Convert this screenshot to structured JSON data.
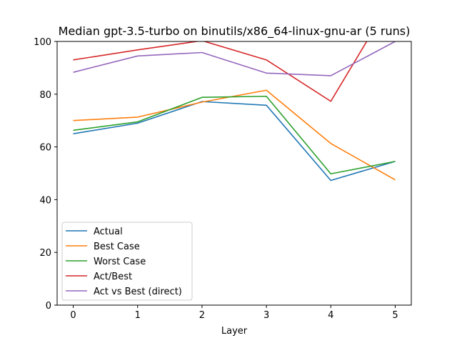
{
  "chart_data": {
    "type": "line",
    "title": "Median gpt-3.5-turbo on binutils/x86_64-linux-gnu-ar (5 runs)",
    "xlabel": "Layer",
    "ylabel": "",
    "x": [
      0,
      1,
      2,
      3,
      4,
      5
    ],
    "xlim": [
      -0.25,
      5.25
    ],
    "ylim": [
      0,
      100
    ],
    "xticks": [
      "0",
      "1",
      "2",
      "3",
      "4",
      "5"
    ],
    "yticks": [
      "0",
      "20",
      "40",
      "60",
      "80",
      "100"
    ],
    "grid": false,
    "legend_position": "lower-left",
    "series": [
      {
        "name": "Actual",
        "color": "#1f77b4",
        "values": [
          65.0,
          69.0,
          77.2,
          75.8,
          47.3,
          54.5
        ]
      },
      {
        "name": "Best Case",
        "color": "#ff7f0e",
        "values": [
          70.0,
          71.3,
          77.0,
          81.5,
          61.3,
          47.5
        ]
      },
      {
        "name": "Worst Case",
        "color": "#2ca02c",
        "values": [
          66.3,
          69.5,
          78.8,
          79.2,
          49.8,
          54.5
        ]
      },
      {
        "name": "Act/Best",
        "color": "#d62728",
        "values": [
          93.0,
          96.8,
          100.3,
          93.0,
          77.3,
          118.0
        ]
      },
      {
        "name": "Act vs Best (direct)",
        "color": "#9467bd",
        "values": [
          88.3,
          94.5,
          95.8,
          88.0,
          87.0,
          100.0
        ]
      }
    ]
  }
}
